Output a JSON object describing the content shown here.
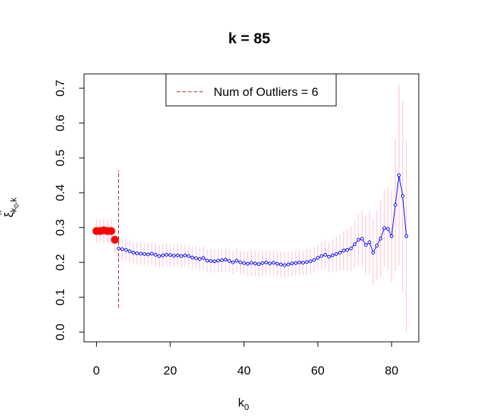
{
  "chart_data": {
    "type": "errorbar",
    "title": "k = 85",
    "x_label": {
      "text": "k",
      "subscript": "0"
    },
    "y_label": {
      "text": "ξ",
      "subscript": "k",
      "sub_subscript": "0",
      "subscript_rest": ",k"
    },
    "xlim": [
      -3.36,
      87.36
    ],
    "ylim": [
      -0.028,
      0.741
    ],
    "xticks": [
      0,
      20,
      40,
      60,
      80
    ],
    "yticks": [
      {
        "value": 0,
        "label": "0.0"
      },
      0.1,
      0.2,
      0.3,
      0.4,
      0.5,
      0.6,
      0.7
    ],
    "error_color": "#ffc0cb",
    "vline": {
      "x": 6,
      "ymin": 0.07,
      "ymax": 0.465,
      "color": "#b22222",
      "legend_label": "Num of Outliers = 6"
    },
    "series": [
      {
        "color": "#ff0000",
        "marker": "filled",
        "x": [
          0,
          1,
          2,
          3,
          4,
          5
        ],
        "values": [
          0.29,
          0.29,
          0.292,
          0.29,
          0.29,
          0.265
        ],
        "errors": [
          0.035,
          0.035,
          0.035,
          0.035,
          0.035,
          0.035
        ]
      },
      {
        "color": "#0000ff",
        "marker": "open-line",
        "x": [
          6,
          7,
          8,
          9,
          10,
          11,
          12,
          13,
          14,
          15,
          16,
          17,
          18,
          19,
          20,
          21,
          22,
          23,
          24,
          25,
          26,
          27,
          28,
          29,
          30,
          31,
          32,
          33,
          34,
          35,
          36,
          37,
          38,
          39,
          40,
          41,
          42,
          43,
          44,
          45,
          46,
          47,
          48,
          49,
          50,
          51,
          52,
          53,
          54,
          55,
          56,
          57,
          58,
          59,
          60,
          61,
          62,
          63,
          64,
          65,
          66,
          67,
          68,
          69,
          70,
          71,
          72,
          73,
          74,
          75,
          76,
          77,
          78,
          79,
          80,
          81,
          82,
          83,
          84
        ],
        "values": [
          0.24,
          0.238,
          0.236,
          0.232,
          0.228,
          0.226,
          0.225,
          0.224,
          0.223,
          0.225,
          0.222,
          0.218,
          0.22,
          0.222,
          0.221,
          0.219,
          0.22,
          0.218,
          0.22,
          0.218,
          0.214,
          0.212,
          0.21,
          0.213,
          0.205,
          0.204,
          0.203,
          0.205,
          0.206,
          0.208,
          0.204,
          0.2,
          0.205,
          0.2,
          0.198,
          0.196,
          0.199,
          0.197,
          0.195,
          0.198,
          0.2,
          0.197,
          0.199,
          0.196,
          0.194,
          0.192,
          0.194,
          0.197,
          0.198,
          0.2,
          0.199,
          0.201,
          0.203,
          0.207,
          0.213,
          0.218,
          0.222,
          0.216,
          0.22,
          0.224,
          0.228,
          0.234,
          0.236,
          0.24,
          0.252,
          0.265,
          0.268,
          0.25,
          0.258,
          0.228,
          0.248,
          0.268,
          0.298,
          0.296,
          0.275,
          0.365,
          0.45,
          0.39,
          0.275
        ],
        "errors": [
          0.032,
          0.032,
          0.032,
          0.032,
          0.032,
          0.032,
          0.032,
          0.032,
          0.032,
          0.032,
          0.032,
          0.032,
          0.032,
          0.032,
          0.032,
          0.033,
          0.033,
          0.033,
          0.033,
          0.033,
          0.033,
          0.033,
          0.033,
          0.033,
          0.033,
          0.033,
          0.033,
          0.033,
          0.033,
          0.033,
          0.033,
          0.033,
          0.033,
          0.033,
          0.033,
          0.036,
          0.036,
          0.036,
          0.036,
          0.036,
          0.036,
          0.036,
          0.036,
          0.036,
          0.036,
          0.036,
          0.036,
          0.036,
          0.036,
          0.036,
          0.036,
          0.036,
          0.036,
          0.036,
          0.036,
          0.04,
          0.042,
          0.044,
          0.046,
          0.05,
          0.052,
          0.056,
          0.06,
          0.065,
          0.07,
          0.075,
          0.08,
          0.085,
          0.09,
          0.095,
          0.1,
          0.11,
          0.11,
          0.12,
          0.13,
          0.19,
          0.26,
          0.275,
          0.275
        ]
      }
    ]
  }
}
